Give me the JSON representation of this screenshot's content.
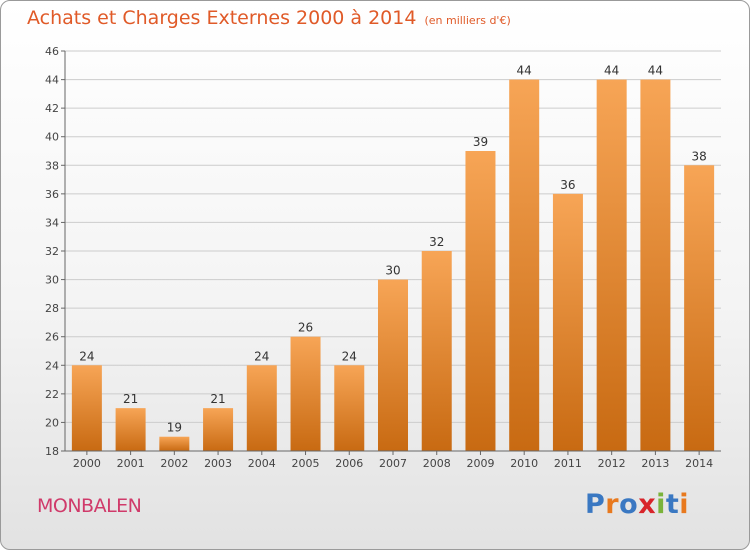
{
  "title": "Achats et Charges Externes 2000 à 2014",
  "unit": "(en milliers d'€)",
  "town": "MONBALEN",
  "brand": {
    "text": "Proxiti",
    "colors": [
      "#3a78c2",
      "#e8791e",
      "#3a78c2",
      "#d8242a",
      "#7ab33a",
      "#3a78c2",
      "#e8791e"
    ]
  },
  "colors": {
    "bar_light": "#f7a556",
    "bar_dark": "#c86a12",
    "title": "#e05a28",
    "town": "#d03a6a",
    "grid": "#cccccc"
  },
  "chart_data": {
    "type": "bar",
    "categories": [
      "2000",
      "2001",
      "2002",
      "2003",
      "2004",
      "2005",
      "2006",
      "2007",
      "2008",
      "2009",
      "2010",
      "2011",
      "2012",
      "2013",
      "2014"
    ],
    "values": [
      24,
      21,
      19,
      21,
      24,
      26,
      24,
      30,
      32,
      39,
      44,
      36,
      44,
      44,
      38
    ],
    "ylim": [
      18,
      46
    ],
    "yticks": [
      18,
      20,
      22,
      24,
      26,
      28,
      30,
      32,
      34,
      36,
      38,
      40,
      42,
      44,
      46
    ],
    "grid": true,
    "data_labels": true
  }
}
